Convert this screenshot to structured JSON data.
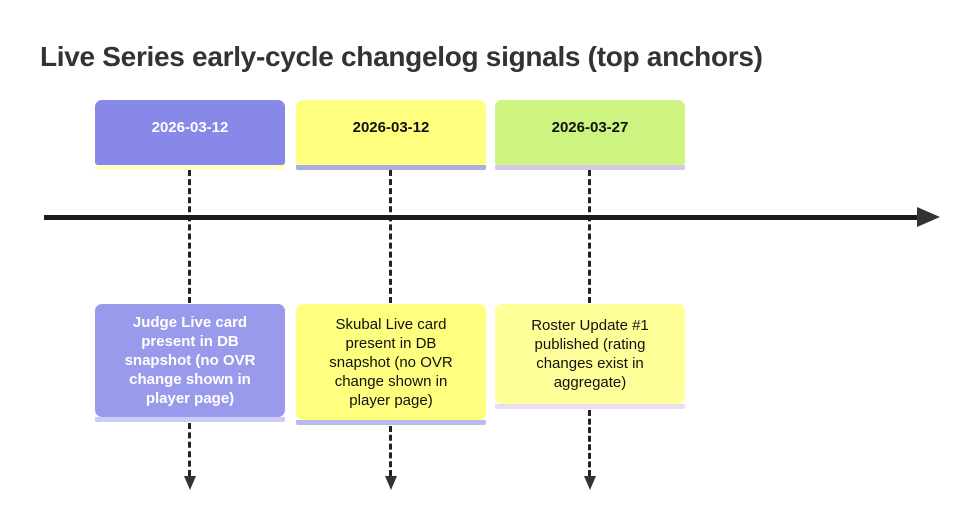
{
  "title": "Live Series early-cycle changelog signals (top anchors)",
  "title_color": "#333333",
  "timeline": {
    "axis": {
      "direction": "right",
      "color": "#1c1c1c",
      "arrowhead_color": "#333333"
    },
    "connector_style": "dashed",
    "events": [
      {
        "date": "2026-03-12",
        "description": "Judge Live card present in DB snapshot (no OVR change shown in player page)",
        "colors": {
          "date_bg": "#8888e8",
          "date_text": "#ffffff",
          "date_strip": "#ffffc8",
          "desc_bg": "#9a9aec",
          "desc_text": "#ffffff",
          "desc_strip": "#ccccf6"
        }
      },
      {
        "date": "2026-03-12",
        "description": "Skubal Live card present in DB snapshot (no OVR change shown in player page)",
        "colors": {
          "date_bg": "#feff7e",
          "date_text": "#111111",
          "date_strip": "#a9aedf",
          "desc_bg": "#feff7e",
          "desc_text": "#111111",
          "desc_strip": "#b9bce8"
        }
      },
      {
        "date": "2026-03-27",
        "description": "Roster Update #1 published (rating changes exist in aggregate)",
        "colors": {
          "date_bg": "#cdf481",
          "date_text": "#111111",
          "date_strip": "#d0c9e8",
          "desc_bg": "#ffff99",
          "desc_text": "#111111",
          "desc_strip": "#e9dcf3"
        }
      }
    ]
  }
}
